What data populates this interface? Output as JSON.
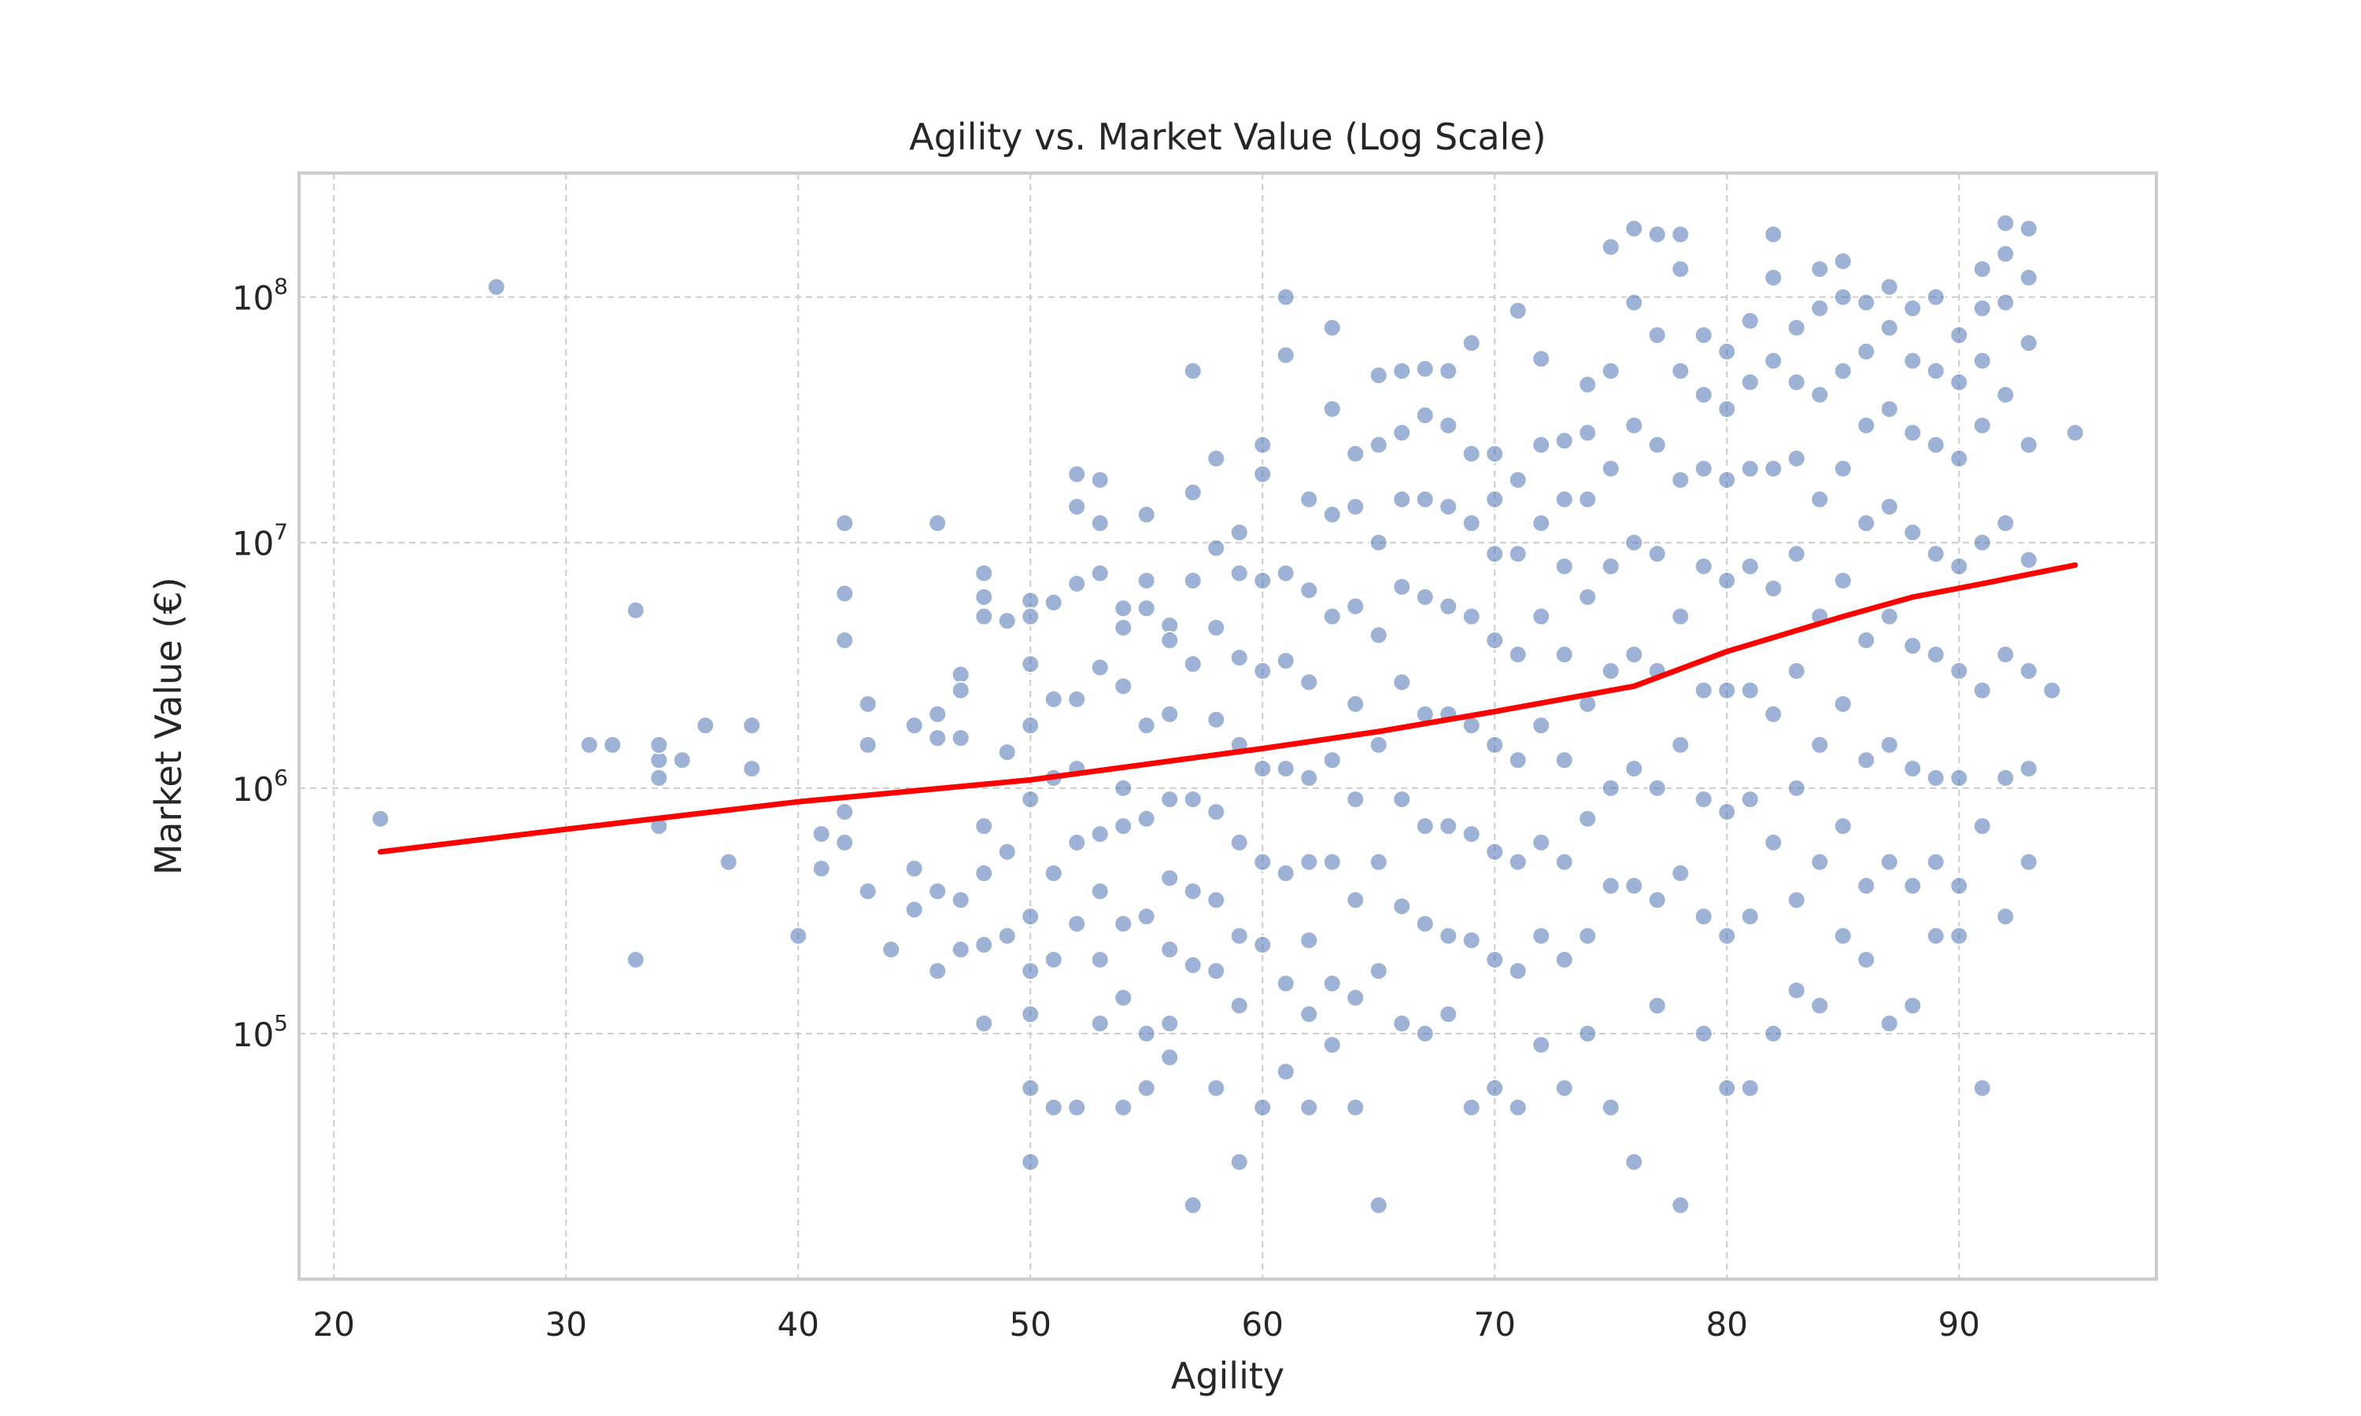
{
  "chart_data": {
    "type": "scatter",
    "title": "Agility vs. Market Value (Log Scale)",
    "xlabel": "Agility",
    "ylabel": "Market Value (€)",
    "xlim": [
      18.5,
      98.5
    ],
    "ylim": [
      10000,
      320000000
    ],
    "yscale": "log",
    "grid": true,
    "xticks": [
      20,
      30,
      40,
      50,
      60,
      70,
      80,
      90
    ],
    "yticks": [
      {
        "value": 100000,
        "base": "10",
        "exp": "5"
      },
      {
        "value": 1000000,
        "base": "10",
        "exp": "6"
      },
      {
        "value": 10000000,
        "base": "10",
        "exp": "7"
      },
      {
        "value": 100000000,
        "base": "10",
        "exp": "8"
      }
    ],
    "colors": {
      "points": "#4c72b0",
      "trend": "#ff0000"
    },
    "series": [
      {
        "kind": "points",
        "x": [
          22,
          27,
          31,
          32,
          33,
          33,
          34,
          34,
          34,
          34,
          35,
          36,
          37,
          38,
          38,
          40,
          41,
          41,
          42,
          42,
          42,
          42,
          42,
          43,
          43,
          43,
          44,
          45,
          45,
          45,
          46,
          46,
          46,
          46,
          46,
          47,
          47,
          47,
          47,
          47,
          48,
          48,
          48,
          48,
          48,
          48,
          48,
          49,
          49,
          49,
          49,
          50,
          50,
          50,
          50,
          50,
          50,
          50,
          50,
          50,
          50,
          51,
          51,
          51,
          51,
          51,
          51,
          52,
          52,
          52,
          52,
          52,
          52,
          52,
          52,
          53,
          53,
          53,
          53,
          53,
          53,
          53,
          53,
          54,
          54,
          54,
          54,
          54,
          54,
          54,
          54,
          55,
          55,
          55,
          55,
          55,
          55,
          55,
          55,
          56,
          56,
          56,
          56,
          56,
          56,
          56,
          56,
          57,
          57,
          57,
          57,
          57,
          57,
          57,
          57,
          58,
          58,
          58,
          58,
          58,
          58,
          58,
          58,
          59,
          59,
          59,
          59,
          59,
          59,
          59,
          59,
          60,
          60,
          60,
          60,
          60,
          60,
          60,
          60,
          61,
          61,
          61,
          61,
          61,
          61,
          61,
          61,
          62,
          62,
          62,
          62,
          62,
          62,
          62,
          62,
          63,
          63,
          63,
          63,
          63,
          63,
          63,
          63,
          64,
          64,
          64,
          64,
          64,
          64,
          64,
          64,
          65,
          65,
          65,
          65,
          65,
          65,
          65,
          65,
          66,
          66,
          66,
          66,
          66,
          66,
          66,
          66,
          67,
          67,
          67,
          67,
          67,
          67,
          67,
          67,
          68,
          68,
          68,
          68,
          68,
          68,
          68,
          68,
          69,
          69,
          69,
          69,
          69,
          69,
          69,
          69,
          70,
          70,
          70,
          70,
          70,
          70,
          70,
          70,
          71,
          71,
          71,
          71,
          71,
          71,
          71,
          71,
          72,
          72,
          72,
          72,
          72,
          72,
          72,
          72,
          73,
          73,
          73,
          73,
          73,
          73,
          73,
          73,
          74,
          74,
          74,
          74,
          74,
          74,
          74,
          74,
          75,
          75,
          75,
          75,
          75,
          75,
          75,
          75,
          76,
          76,
          76,
          76,
          76,
          76,
          76,
          76,
          77,
          77,
          77,
          77,
          77,
          77,
          77,
          77,
          78,
          78,
          78,
          78,
          78,
          78,
          78,
          78,
          79,
          79,
          79,
          79,
          79,
          79,
          79,
          79,
          80,
          80,
          80,
          80,
          80,
          80,
          80,
          80,
          81,
          81,
          81,
          81,
          81,
          81,
          81,
          81,
          82,
          82,
          82,
          82,
          82,
          82,
          82,
          82,
          83,
          83,
          83,
          83,
          83,
          83,
          83,
          83,
          84,
          84,
          84,
          84,
          84,
          84,
          84,
          84,
          85,
          85,
          85,
          85,
          85,
          85,
          85,
          85,
          86,
          86,
          86,
          86,
          86,
          86,
          86,
          86,
          87,
          87,
          87,
          87,
          87,
          87,
          87,
          87,
          88,
          88,
          88,
          88,
          88,
          88,
          88,
          88,
          89,
          89,
          89,
          89,
          89,
          89,
          89,
          89,
          90,
          90,
          90,
          90,
          90,
          90,
          90,
          90,
          91,
          91,
          91,
          91,
          91,
          91,
          91,
          91,
          92,
          92,
          92,
          92,
          92,
          92,
          92,
          92,
          93,
          93,
          93,
          93,
          93,
          93,
          93,
          93,
          94,
          95
        ],
        "y": [
          750000,
          110000000,
          1500000,
          1500000,
          5300000,
          200000,
          700000,
          1100000,
          1300000,
          1500000,
          1300000,
          1800000,
          500000,
          1800000,
          1200000,
          250000,
          650000,
          470000,
          12000000,
          6200000,
          4000000,
          800000,
          600000,
          2200000,
          1500000,
          380000,
          220000,
          1800000,
          470000,
          320000,
          12000000,
          2000000,
          1600000,
          380000,
          180000,
          2900000,
          2500000,
          1600000,
          350000,
          220000,
          7500000,
          6000000,
          5000000,
          700000,
          450000,
          230000,
          110000,
          4800000,
          1400000,
          550000,
          250000,
          5800000,
          5000000,
          3200000,
          1800000,
          900000,
          300000,
          180000,
          120000,
          60000,
          30000,
          5700000,
          2300000,
          1100000,
          450000,
          200000,
          50000,
          19000000,
          14000000,
          6800000,
          2300000,
          1200000,
          600000,
          280000,
          50000,
          18000000,
          12000000,
          7500000,
          3100000,
          650000,
          380000,
          200000,
          110000,
          5400000,
          4500000,
          2600000,
          1000000,
          700000,
          280000,
          140000,
          50000,
          13000000,
          7000000,
          5400000,
          1800000,
          750000,
          300000,
          100000,
          60000,
          4600000,
          4000000,
          2000000,
          900000,
          430000,
          220000,
          110000,
          80000,
          50000000,
          16000000,
          7000000,
          3200000,
          900000,
          380000,
          190000,
          20000,
          22000000,
          9500000,
          4500000,
          1900000,
          800000,
          350000,
          180000,
          60000,
          11000000,
          7500000,
          3400000,
          1500000,
          600000,
          250000,
          130000,
          30000,
          25000000,
          19000000,
          7000000,
          3000000,
          1200000,
          500000,
          230000,
          50000,
          100000000,
          58000000,
          7500000,
          3300000,
          1200000,
          450000,
          160000,
          70000,
          15000000,
          6400000,
          2700000,
          1100000,
          500000,
          240000,
          120000,
          50000,
          75000000,
          35000000,
          13000000,
          5000000,
          1300000,
          500000,
          160000,
          90000,
          23000000,
          14000000,
          5500000,
          2200000,
          900000,
          350000,
          140000,
          50000,
          48000000,
          25000000,
          10000000,
          4200000,
          1500000,
          500000,
          180000,
          20000,
          50000000,
          28000000,
          15000000,
          6600000,
          2700000,
          900000,
          330000,
          110000,
          51000000,
          33000000,
          15000000,
          6000000,
          2000000,
          700000,
          280000,
          100000,
          50000000,
          30000000,
          14000000,
          5500000,
          2000000,
          700000,
          250000,
          120000,
          65000000,
          23000000,
          12000000,
          5000000,
          1800000,
          650000,
          240000,
          50000,
          23000000,
          15000000,
          9000000,
          4000000,
          1500000,
          550000,
          200000,
          60000,
          88000000,
          18000000,
          9000000,
          3500000,
          1300000,
          500000,
          180000,
          50000,
          56000000,
          25000000,
          12000000,
          5000000,
          1800000,
          600000,
          250000,
          90000,
          26000000,
          15000000,
          8000000,
          3500000,
          1300000,
          500000,
          200000,
          60000,
          44000000,
          28000000,
          15000000,
          6000000,
          2200000,
          750000,
          250000,
          100000,
          160000000,
          50000000,
          20000000,
          8000000,
          3000000,
          1000000,
          400000,
          50000,
          190000000,
          95000000,
          30000000,
          10000000,
          3500000,
          1200000,
          400000,
          30000,
          180000000,
          70000000,
          25000000,
          9000000,
          3000000,
          1000000,
          350000,
          130000,
          180000000,
          130000000,
          50000000,
          18000000,
          5000000,
          1500000,
          450000,
          20000,
          70000000,
          40000000,
          20000000,
          8000000,
          2500000,
          900000,
          300000,
          100000,
          60000000,
          35000000,
          18000000,
          7000000,
          2500000,
          800000,
          250000,
          60000,
          80000000,
          45000000,
          20000000,
          8000000,
          2500000,
          900000,
          300000,
          60000,
          180000000,
          120000000,
          55000000,
          20000000,
          6500000,
          2000000,
          600000,
          100000,
          75000000,
          45000000,
          22000000,
          9000000,
          3000000,
          1000000,
          350000,
          150000,
          130000000,
          90000000,
          40000000,
          15000000,
          5000000,
          1500000,
          500000,
          130000,
          140000000,
          100000000,
          50000000,
          20000000,
          7000000,
          2200000,
          700000,
          250000,
          95000000,
          60000000,
          30000000,
          12000000,
          4000000,
          1300000,
          400000,
          200000,
          110000000,
          75000000,
          35000000,
          14000000,
          5000000,
          1500000,
          500000,
          110000,
          90000000,
          55000000,
          28000000,
          11000000,
          3800000,
          1200000,
          400000,
          130000,
          100000000,
          50000000,
          25000000,
          9000000,
          3500000,
          1100000,
          500000,
          250000,
          70000000,
          45000000,
          22000000,
          8000000,
          3000000,
          1100000,
          400000,
          250000,
          130000000,
          90000000,
          55000000,
          30000000,
          10000000,
          2500000,
          700000,
          60000,
          200000000,
          150000000,
          95000000,
          40000000,
          12000000,
          3500000,
          1100000,
          300000,
          190000000,
          120000000,
          65000000,
          25000000,
          8500000,
          3000000,
          1200000,
          500000,
          2500000,
          28000000
        ]
      },
      {
        "kind": "trend",
        "x": [
          22,
          30,
          40,
          50,
          60,
          65,
          70,
          76,
          80,
          85,
          88,
          91,
          95
        ],
        "y": [
          550000,
          680000,
          880000,
          1080000,
          1450000,
          1700000,
          2050000,
          2600000,
          3600000,
          5000000,
          6000000,
          6800000,
          8100000
        ]
      }
    ]
  }
}
